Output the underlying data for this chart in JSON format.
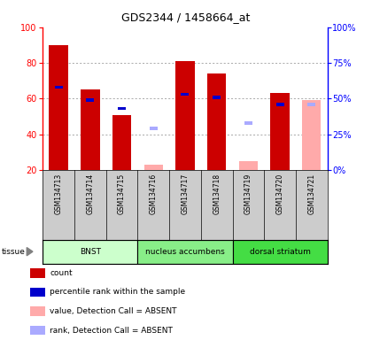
{
  "title": "GDS2344 / 1458664_at",
  "samples": [
    "GSM134713",
    "GSM134714",
    "GSM134715",
    "GSM134716",
    "GSM134717",
    "GSM134718",
    "GSM134719",
    "GSM134720",
    "GSM134721"
  ],
  "tissues": [
    {
      "label": "BNST",
      "start": 0,
      "end": 3,
      "color": "#ccffcc"
    },
    {
      "label": "nucleus accumbens",
      "start": 3,
      "end": 6,
      "color": "#88ee88"
    },
    {
      "label": "dorsal striatum",
      "start": 6,
      "end": 9,
      "color": "#44dd44"
    }
  ],
  "present": [
    true,
    true,
    true,
    false,
    true,
    true,
    false,
    true,
    false
  ],
  "count_values": [
    90,
    65,
    51,
    null,
    81,
    74,
    null,
    63,
    null
  ],
  "rank_values": [
    58,
    49,
    43,
    null,
    53,
    51,
    null,
    46,
    null
  ],
  "absent_value_values": [
    null,
    null,
    null,
    23,
    null,
    null,
    25,
    null,
    59
  ],
  "absent_rank_values": [
    null,
    null,
    null,
    29,
    null,
    null,
    33,
    null,
    46
  ],
  "ylim_left": [
    20,
    100
  ],
  "ylim_right": [
    0,
    100
  ],
  "yticks_left": [
    20,
    40,
    60,
    80,
    100
  ],
  "yticks_right": [
    0,
    25,
    50,
    75,
    100
  ],
  "yticklabels_right": [
    "0%",
    "25%",
    "50%",
    "75%",
    "100%"
  ],
  "left_axis_color": "red",
  "right_axis_color": "blue",
  "bar_width": 0.6,
  "rank_bar_width": 0.25,
  "count_color": "#cc0000",
  "rank_color": "#0000cc",
  "absent_value_color": "#ffaaaa",
  "absent_rank_color": "#aaaaff",
  "grid_color": "#888888",
  "sample_bg_color": "#cccccc",
  "legend_items": [
    {
      "color": "#cc0000",
      "label": "count"
    },
    {
      "color": "#0000cc",
      "label": "percentile rank within the sample"
    },
    {
      "color": "#ffaaaa",
      "label": "value, Detection Call = ABSENT"
    },
    {
      "color": "#aaaaff",
      "label": "rank, Detection Call = ABSENT"
    }
  ]
}
